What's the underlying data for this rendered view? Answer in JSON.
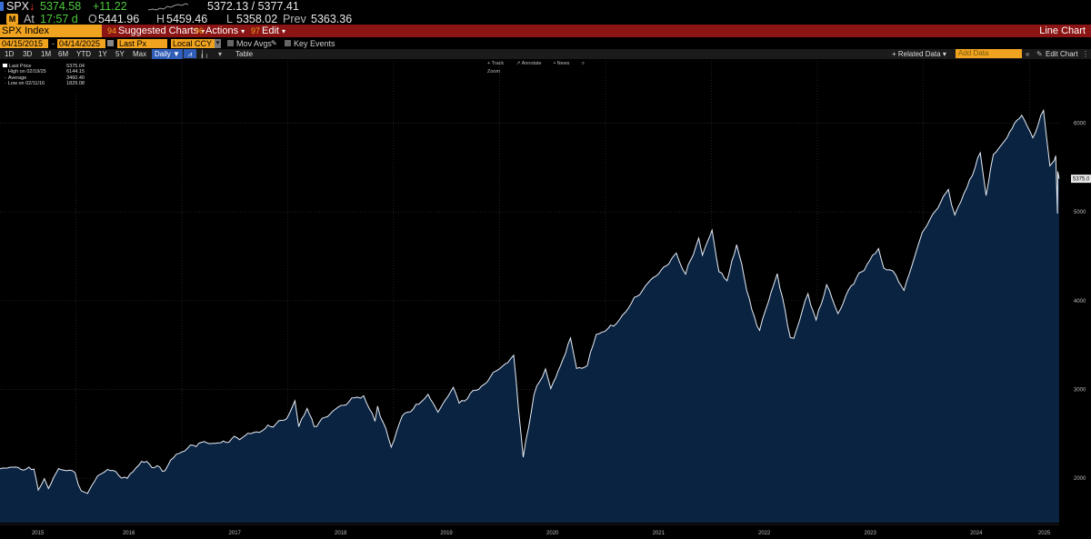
{
  "quote": {
    "ticker": "SPX",
    "direction_arrow": "↓",
    "last": "5374.58",
    "change": "+11.22",
    "bid_ask": "5372.13 / 5377.41",
    "time_label": "At",
    "time": "17:57 d",
    "open_label": "O",
    "open": "5441.96",
    "high_label": "H",
    "high": "5459.46",
    "low_label": "L",
    "low": "5358.02",
    "prev_label": "Prev",
    "prev": "5363.36"
  },
  "menubar": {
    "security": "SPX Index",
    "suggested_num": "94",
    "suggested": "Suggested Charts",
    "actions_num": "96",
    "actions": "Actions",
    "edit_num": "97",
    "edit": "Edit",
    "view_title": "Line Chart"
  },
  "settings": {
    "start_date": "04/15/2015",
    "end_date": "04/14/2025",
    "field": "Last Px",
    "currency": "Local CCY",
    "mov_avgs": "Mov Avgs",
    "key_events": "Key Events"
  },
  "toolbar": {
    "periods": [
      "1D",
      "3D",
      "1M",
      "6M",
      "YTD",
      "1Y",
      "5Y",
      "Max"
    ],
    "frequency": "Daily ▼",
    "table": "Table",
    "related_data": "Related Data",
    "add_data_placeholder": "Add Data",
    "edit_chart": "Edit Chart"
  },
  "annotations": [
    "Track",
    "Annotate",
    "News",
    "Zoom"
  ],
  "legend": {
    "last_label": "Last Price",
    "last_value": "5375.04",
    "high_label": "High on 02/19/25",
    "high_value": "6144.15",
    "avg_label": "Average",
    "avg_value": "3460.40",
    "low_label": "Low on 02/11/16",
    "low_value": "1829.08"
  },
  "colors": {
    "background": "#000000",
    "area_fill": "#0a2340",
    "line": "#e8eef8",
    "accent_orange": "#f0a31e",
    "menu_red": "#8b1414",
    "grid": "#3a3a3a"
  },
  "chart_data": {
    "type": "area",
    "last_price_tag": "5375.0",
    "yticks": [
      2000,
      3000,
      4000,
      5000,
      6000
    ],
    "ylim": [
      1500,
      6600
    ],
    "xticks": [
      "2015",
      "2016",
      "2017",
      "2018",
      "2019",
      "2020",
      "2021",
      "2022",
      "2023",
      "2024",
      "2025"
    ],
    "xtick_dates": [
      "2015-01-01",
      "2016-01-01",
      "2017-01-01",
      "2018-01-01",
      "2019-01-01",
      "2020-01-01",
      "2021-01-01",
      "2022-01-01",
      "2023-01-01",
      "2024-01-01",
      "2025-01-01"
    ],
    "xlim": [
      "2015-04-15",
      "2025-04-14"
    ],
    "series": [
      {
        "x": [
          "2015-04-15",
          "2015-05-20",
          "2015-07-15",
          "2015-08-10",
          "2015-08-25",
          "2015-09-15",
          "2015-09-29",
          "2015-11-03",
          "2015-12-30",
          "2016-01-20",
          "2016-02-11",
          "2016-03-15",
          "2016-04-20",
          "2016-06-27",
          "2016-08-15",
          "2016-11-04",
          "2016-12-13",
          "2017-03-01",
          "2017-05-15",
          "2017-08-07",
          "2017-10-15",
          "2017-12-29",
          "2018-01-26",
          "2018-02-08",
          "2018-03-09",
          "2018-04-02",
          "2018-06-15",
          "2018-08-29",
          "2018-09-20",
          "2018-10-29",
          "2018-11-07",
          "2018-12-24",
          "2019-01-31",
          "2019-03-29",
          "2019-04-30",
          "2019-06-03",
          "2019-07-26",
          "2019-08-15",
          "2019-10-31",
          "2019-12-31",
          "2020-02-19",
          "2020-03-23",
          "2020-04-29",
          "2020-06-08",
          "2020-06-26",
          "2020-07-30",
          "2020-09-02",
          "2020-09-23",
          "2020-10-30",
          "2020-11-30",
          "2021-01-29",
          "2021-03-31",
          "2021-05-28",
          "2021-07-30",
          "2021-09-02",
          "2021-10-04",
          "2021-11-18",
          "2021-12-01",
          "2022-01-03",
          "2022-01-27",
          "2022-02-24",
          "2022-03-29",
          "2022-05-20",
          "2022-06-16",
          "2022-08-16",
          "2022-09-30",
          "2022-10-12",
          "2022-11-30",
          "2022-12-28",
          "2023-02-02",
          "2023-03-13",
          "2023-04-28",
          "2023-06-30",
          "2023-07-31",
          "2023-08-18",
          "2023-09-29",
          "2023-10-27",
          "2023-12-29",
          "2024-03-28",
          "2024-04-19",
          "2024-05-31",
          "2024-07-16",
          "2024-08-05",
          "2024-08-30",
          "2024-10-17",
          "2024-11-11",
          "2024-12-06",
          "2025-01-13",
          "2025-02-19",
          "2025-03-13",
          "2025-03-28",
          "2025-04-02",
          "2025-04-08",
          "2025-04-09",
          "2025-04-14"
        ],
        "y": [
          2106,
          2125,
          2105,
          2104,
          1868,
          1995,
          1885,
          2109,
          2063,
          1859,
          1829,
          2020,
          2100,
          2000,
          2190,
          2085,
          2271,
          2395,
          2400,
          2480,
          2560,
          2673,
          2872,
          2581,
          2786,
          2582,
          2780,
          2914,
          2930,
          2641,
          2813,
          2351,
          2704,
          2834,
          2946,
          2744,
          3025,
          2847,
          3037,
          3230,
          3386,
          2237,
          2940,
          3232,
          3010,
          3271,
          3580,
          3237,
          3270,
          3622,
          3714,
          3973,
          4204,
          4395,
          4537,
          4300,
          4705,
          4513,
          4796,
          4326,
          4225,
          4632,
          3901,
          3666,
          4305,
          3585,
          3577,
          4080,
          3783,
          4180,
          3855,
          4169,
          4450,
          4588,
          4370,
          4288,
          4117,
          4770,
          5254,
          4967,
          5277,
          5667,
          5186,
          5648,
          5842,
          6001,
          6090,
          5836,
          6144,
          5521,
          5580,
          5633,
          4982,
          5457,
          5375
        ]
      }
    ]
  }
}
